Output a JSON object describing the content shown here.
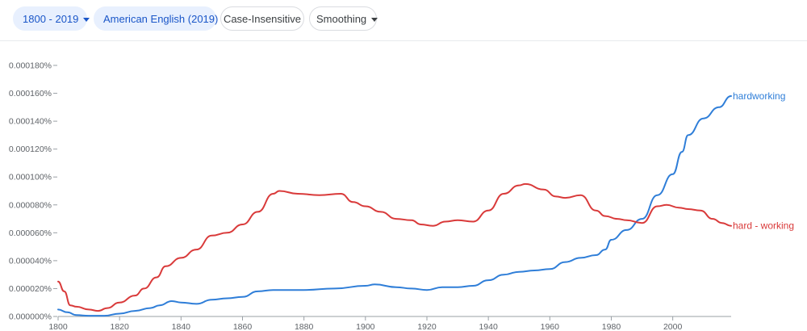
{
  "toolbar": {
    "range_label": "1800 - 2019",
    "corpus_label": "American English (2019)",
    "case_label": "Case-Insensitive",
    "smoothing_label": "Smoothing"
  },
  "colors": {
    "accent_bg": "#e8f0fe",
    "accent_text": "#1a56c8"
  },
  "icons": {
    "dropdown": "caret-down-icon"
  },
  "chart_data": {
    "type": "line",
    "xlim": [
      1800,
      2019
    ],
    "ylim": [
      0,
      1.8e-06
    ],
    "x_ticks": [
      "1800",
      "1820",
      "1840",
      "1860",
      "1880",
      "1900",
      "1920",
      "1940",
      "1960",
      "1980",
      "2000"
    ],
    "y_ticks": [
      "0.000000%",
      "0.000020%",
      "0.000040%",
      "0.000060%",
      "0.000080%",
      "0.000100%",
      "0.000120%",
      "0.000140%",
      "0.000160%",
      "0.000180%"
    ],
    "grid": false,
    "series": [
      {
        "name": "hardworking",
        "color": "#2f7ed8",
        "points": [
          [
            1800,
            5e-08
          ],
          [
            1803,
            3e-08
          ],
          [
            1806,
            1e-08
          ],
          [
            1810,
            5e-09
          ],
          [
            1815,
            5e-09
          ],
          [
            1820,
            2e-08
          ],
          [
            1825,
            4e-08
          ],
          [
            1830,
            6e-08
          ],
          [
            1833,
            8e-08
          ],
          [
            1837,
            1.1e-07
          ],
          [
            1840,
            1e-07
          ],
          [
            1845,
            9e-08
          ],
          [
            1850,
            1.2e-07
          ],
          [
            1855,
            1.3e-07
          ],
          [
            1860,
            1.4e-07
          ],
          [
            1865,
            1.8e-07
          ],
          [
            1870,
            1.9e-07
          ],
          [
            1880,
            1.9e-07
          ],
          [
            1890,
            2e-07
          ],
          [
            1900,
            2.2e-07
          ],
          [
            1903,
            2.3e-07
          ],
          [
            1910,
            2.1e-07
          ],
          [
            1915,
            2e-07
          ],
          [
            1920,
            1.9e-07
          ],
          [
            1925,
            2.1e-07
          ],
          [
            1930,
            2.1e-07
          ],
          [
            1935,
            2.2e-07
          ],
          [
            1940,
            2.6e-07
          ],
          [
            1945,
            3e-07
          ],
          [
            1950,
            3.2e-07
          ],
          [
            1955,
            3.3e-07
          ],
          [
            1960,
            3.4e-07
          ],
          [
            1965,
            3.9e-07
          ],
          [
            1970,
            4.2e-07
          ],
          [
            1975,
            4.4e-07
          ],
          [
            1978,
            4.8e-07
          ],
          [
            1980,
            5.5e-07
          ],
          [
            1985,
            6.2e-07
          ],
          [
            1990,
            7e-07
          ],
          [
            1995,
            8.7e-07
          ],
          [
            2000,
            1.02e-06
          ],
          [
            2003,
            1.18e-06
          ],
          [
            2005,
            1.3e-06
          ],
          [
            2010,
            1.42e-06
          ],
          [
            2015,
            1.5e-06
          ],
          [
            2019,
            1.58e-06
          ]
        ]
      },
      {
        "name": "hard - working",
        "color": "#d93a3a",
        "points": [
          [
            1800,
            2.5e-07
          ],
          [
            1802,
            1.8e-07
          ],
          [
            1804,
            8e-08
          ],
          [
            1806,
            7e-08
          ],
          [
            1810,
            5e-08
          ],
          [
            1813,
            4e-08
          ],
          [
            1816,
            6e-08
          ],
          [
            1820,
            1e-07
          ],
          [
            1825,
            1.5e-07
          ],
          [
            1828,
            2e-07
          ],
          [
            1832,
            2.8e-07
          ],
          [
            1835,
            3.6e-07
          ],
          [
            1840,
            4.2e-07
          ],
          [
            1845,
            4.8e-07
          ],
          [
            1850,
            5.8e-07
          ],
          [
            1855,
            6e-07
          ],
          [
            1860,
            6.6e-07
          ],
          [
            1865,
            7.5e-07
          ],
          [
            1870,
            8.8e-07
          ],
          [
            1872,
            9e-07
          ],
          [
            1878,
            8.8e-07
          ],
          [
            1885,
            8.7e-07
          ],
          [
            1892,
            8.8e-07
          ],
          [
            1896,
            8.2e-07
          ],
          [
            1900,
            7.9e-07
          ],
          [
            1905,
            7.5e-07
          ],
          [
            1910,
            7e-07
          ],
          [
            1915,
            6.9e-07
          ],
          [
            1918,
            6.6e-07
          ],
          [
            1922,
            6.5e-07
          ],
          [
            1926,
            6.8e-07
          ],
          [
            1930,
            6.9e-07
          ],
          [
            1935,
            6.8e-07
          ],
          [
            1940,
            7.6e-07
          ],
          [
            1945,
            8.8e-07
          ],
          [
            1950,
            9.4e-07
          ],
          [
            1952,
            9.5e-07
          ],
          [
            1958,
            9.1e-07
          ],
          [
            1962,
            8.6e-07
          ],
          [
            1965,
            8.5e-07
          ],
          [
            1970,
            8.7e-07
          ],
          [
            1975,
            7.6e-07
          ],
          [
            1978,
            7.2e-07
          ],
          [
            1982,
            7e-07
          ],
          [
            1985,
            6.9e-07
          ],
          [
            1990,
            6.7e-07
          ],
          [
            1995,
            7.9e-07
          ],
          [
            1998,
            8e-07
          ],
          [
            2002,
            7.8e-07
          ],
          [
            2005,
            7.7e-07
          ],
          [
            2009,
            7.6e-07
          ],
          [
            2013,
            7e-07
          ],
          [
            2016,
            6.7e-07
          ],
          [
            2019,
            6.5e-07
          ]
        ]
      }
    ]
  }
}
